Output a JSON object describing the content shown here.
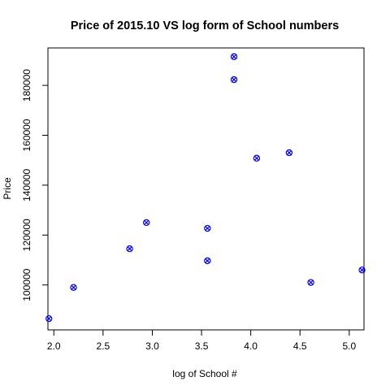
{
  "chart_data": {
    "type": "scatter",
    "title": "Price of 2015.10 VS log form of School numbers",
    "xlabel": "log of School #",
    "ylabel": "Price",
    "xlim": [
      1.94,
      5.15
    ],
    "ylim": [
      82000,
      195000
    ],
    "x_ticks": [
      2.0,
      2.5,
      3.0,
      3.5,
      4.0,
      4.5,
      5.0
    ],
    "x_tick_labels": [
      "2.0",
      "2.5",
      "3.0",
      "3.5",
      "4.0",
      "4.5",
      "5.0"
    ],
    "y_ticks": [
      100000,
      120000,
      140000,
      160000,
      180000
    ],
    "y_tick_labels": [
      "100000",
      "120000",
      "140000",
      "160000",
      "180000"
    ],
    "grid": false,
    "marker_color": "#0000ff",
    "marker": "circle-x",
    "points": [
      {
        "x": 1.95,
        "y": 86500
      },
      {
        "x": 2.2,
        "y": 99000
      },
      {
        "x": 2.77,
        "y": 114500
      },
      {
        "x": 2.94,
        "y": 125000
      },
      {
        "x": 3.56,
        "y": 122700
      },
      {
        "x": 3.56,
        "y": 109700
      },
      {
        "x": 3.83,
        "y": 191500
      },
      {
        "x": 3.83,
        "y": 182300
      },
      {
        "x": 4.06,
        "y": 150800
      },
      {
        "x": 4.39,
        "y": 153000
      },
      {
        "x": 4.61,
        "y": 101000
      },
      {
        "x": 5.13,
        "y": 106000
      }
    ]
  }
}
